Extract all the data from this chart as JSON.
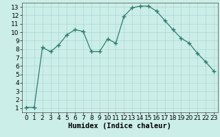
{
  "x": [
    0,
    1,
    2,
    3,
    4,
    5,
    6,
    7,
    8,
    9,
    10,
    11,
    12,
    13,
    14,
    15,
    16,
    17,
    18,
    19,
    20,
    21,
    22,
    23
  ],
  "y": [
    1.1,
    1.1,
    8.2,
    7.7,
    8.5,
    9.7,
    10.3,
    10.1,
    7.7,
    7.7,
    9.2,
    8.7,
    11.9,
    12.9,
    13.1,
    13.1,
    12.5,
    11.4,
    10.3,
    9.3,
    8.7,
    7.5,
    6.5,
    5.4
  ],
  "line_color": "#2d7b6d",
  "marker": "+",
  "marker_size": 4,
  "marker_linewidth": 1.0,
  "line_width": 0.9,
  "bg_color": "#cceee8",
  "grid_color": "#aad8d2",
  "xlabel": "Humidex (Indice chaleur)",
  "xlim": [
    -0.5,
    23.5
  ],
  "ylim": [
    0.5,
    13.5
  ],
  "yticks": [
    1,
    2,
    3,
    4,
    5,
    6,
    7,
    8,
    9,
    10,
    11,
    12,
    13
  ],
  "xticks": [
    0,
    1,
    2,
    3,
    4,
    5,
    6,
    7,
    8,
    9,
    10,
    11,
    12,
    13,
    14,
    15,
    16,
    17,
    18,
    19,
    20,
    21,
    22,
    23
  ],
  "xlabel_fontsize": 7.5,
  "tick_fontsize": 6.5
}
